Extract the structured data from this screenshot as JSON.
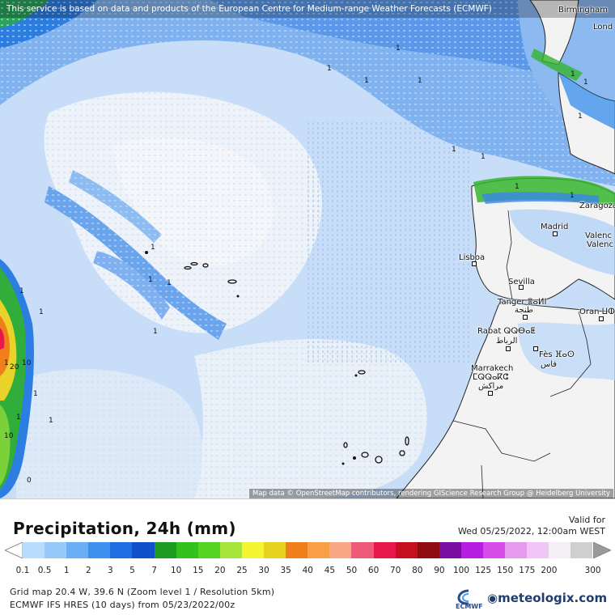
{
  "map": {
    "attribution_top": "This service is based on data and products of the European Centre for Medium-range Weather Forecasts (ECMWF)",
    "attribution_bottom": "Map data © OpenStreetMap contributors, rendering GIScience Research Group @ Heidelberg University",
    "cities": [
      {
        "name": "Birmingham"
      },
      {
        "name": "Lond"
      },
      {
        "name": "Zaragoza"
      },
      {
        "name": "Madrid"
      },
      {
        "name": "Valenc"
      },
      {
        "name": "Valenc"
      },
      {
        "name": "Lisboa"
      },
      {
        "name": "Sevilla"
      },
      {
        "name": "Tanger ⴻⴰⵍⵏ"
      },
      {
        "name": "طنجة"
      },
      {
        "name": "Oran ⵡⵀⵔⴰⵏ"
      },
      {
        "name": "Rabat ⵕⵕⴱⴰⵟ"
      },
      {
        "name": "الرباط"
      },
      {
        "name": "Fès ⴼⴰⵙ"
      },
      {
        "name": "فاس"
      },
      {
        "name": "Marrakech"
      },
      {
        "name": "ⵎⵕⵕⴰⴽⵛ"
      },
      {
        "name": "مراكش"
      }
    ],
    "value_labels": [
      "1",
      "1",
      "1",
      "1",
      "1",
      "1",
      "1",
      "1",
      "1",
      "1",
      "1",
      "1",
      "1",
      "1",
      "1",
      "1",
      "1",
      "1",
      "1",
      "1",
      "10",
      "20",
      "10",
      "1",
      "0"
    ]
  },
  "legend": {
    "title": "Precipitation, 24h (mm)",
    "valid_label": "Valid for",
    "valid_time": "Wed 05/25/2022, 12:00am WEST",
    "scale": [
      {
        "label": "0.1",
        "color": "#b8dcfc"
      },
      {
        "label": "0.5",
        "color": "#98c9fb"
      },
      {
        "label": "1",
        "color": "#6aaff6"
      },
      {
        "label": "2",
        "color": "#3c8eef"
      },
      {
        "label": "3",
        "color": "#1f6fe3"
      },
      {
        "label": "5",
        "color": "#1050c8"
      },
      {
        "label": "7",
        "color": "#1f9c1f"
      },
      {
        "label": "10",
        "color": "#33c11e"
      },
      {
        "label": "15",
        "color": "#55d522"
      },
      {
        "label": "20",
        "color": "#a6e53a"
      },
      {
        "label": "25",
        "color": "#f5f534"
      },
      {
        "label": "30",
        "color": "#e6d321"
      },
      {
        "label": "35",
        "color": "#f07e1a"
      },
      {
        "label": "40",
        "color": "#f89f47"
      },
      {
        "label": "45",
        "color": "#f8a784"
      },
      {
        "label": "50",
        "color": "#f05a7a"
      },
      {
        "label": "60",
        "color": "#e8174e"
      },
      {
        "label": "70",
        "color": "#c4101f"
      },
      {
        "label": "80",
        "color": "#8e0b10"
      },
      {
        "label": "90",
        "color": "#7a0ea3"
      },
      {
        "label": "100",
        "color": "#b51ee0"
      },
      {
        "label": "125",
        "color": "#d64ce8"
      },
      {
        "label": "150",
        "color": "#e59af0"
      },
      {
        "label": "175",
        "color": "#efc6f5"
      },
      {
        "label": "200",
        "color": "#f3eff5"
      },
      {
        "label": "",
        "color": "#cfcfcf"
      }
    ],
    "scale_end_label": "300",
    "grid_info": "Grid map 20.4 W, 39.6 N (Zoom level 1 / Resolution 5km)",
    "model_info": "ECMWF IFS HRES (10 days) from 05/23/2022/00z",
    "ecmwf_logo_text": "ECMWF",
    "brand": "meteologix.com"
  }
}
